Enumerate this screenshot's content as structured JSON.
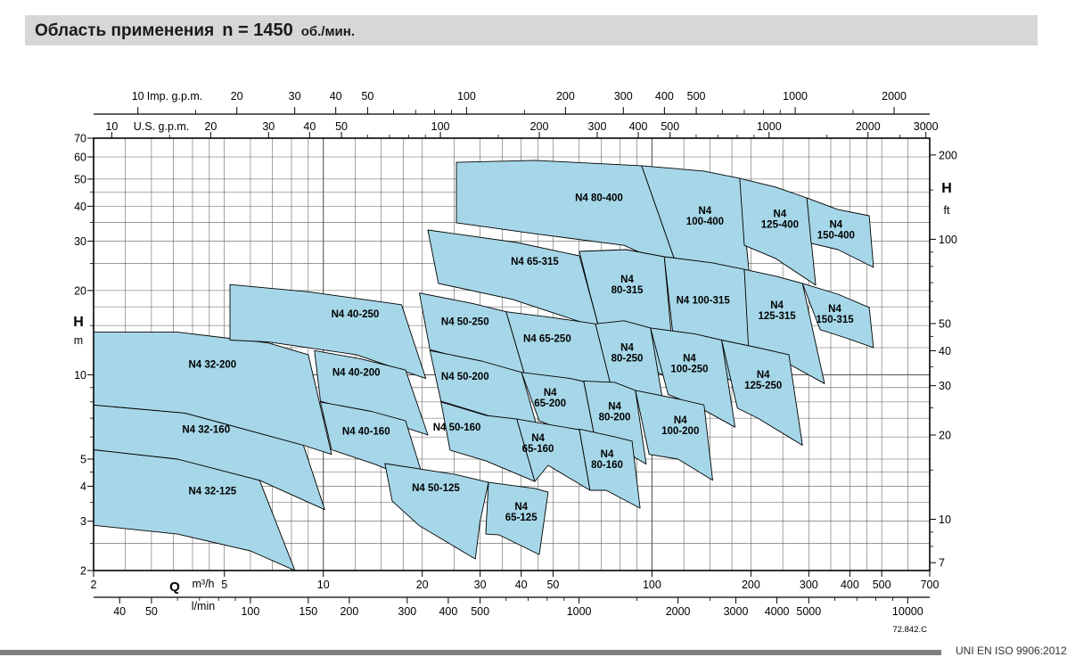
{
  "header": {
    "title_ru": "Область применения",
    "speed": "n = 1450",
    "speed_unit": "об./мин."
  },
  "footer": {
    "drawing_code": "72.842.C",
    "standard": "UNI EN ISO 9906:2012"
  },
  "colors": {
    "header_bg": "#d7d7d7",
    "region_fill": "#a6d7e8",
    "region_stroke": "#000000",
    "grid": "#5a5a5a",
    "frame": "#000000",
    "footer_bar": "#7f7f7f"
  },
  "chart_data": {
    "type": "area",
    "title": "Область применения n = 1450 об./мин.",
    "x_axes": {
      "m3h": {
        "name": "Q",
        "unit": "m³/h",
        "range": [
          2,
          700
        ],
        "ticks": [
          2,
          5,
          10,
          20,
          30,
          40,
          50,
          100,
          200,
          300,
          400,
          500,
          700
        ]
      },
      "lmin": {
        "unit": "l/min",
        "per_m3h": 16.6667,
        "ticks": [
          40,
          50,
          100,
          150,
          200,
          300,
          400,
          500,
          1000,
          2000,
          3000,
          4000,
          5000,
          10000
        ],
        "minor_ticks": [
          60,
          70,
          80,
          90,
          600,
          700,
          800,
          900,
          1500,
          2500,
          6000,
          7000,
          8000,
          9000
        ]
      },
      "imp_gpm": {
        "unit": "Imp. g.p.m.",
        "per_m3h": 3.6662,
        "ticks": [
          10,
          20,
          30,
          40,
          50,
          100,
          200,
          300,
          400,
          500,
          1000,
          2000
        ],
        "minor_ticks": [
          15,
          60,
          70,
          80,
          90,
          150,
          600,
          700,
          800,
          900,
          1500
        ]
      },
      "us_gpm": {
        "unit": "U.S. g.p.m.",
        "per_m3h": 4.4029,
        "ticks": [
          10,
          20,
          30,
          40,
          50,
          100,
          200,
          300,
          400,
          500,
          1000,
          2000,
          3000
        ],
        "minor_ticks": [
          15,
          60,
          70,
          80,
          90,
          150,
          600,
          700,
          800,
          900,
          1500,
          2500
        ]
      }
    },
    "y_axes": {
      "m": {
        "name": "H",
        "unit": "m",
        "range": [
          2,
          70
        ],
        "ticks": [
          2,
          3,
          4,
          5,
          10,
          20,
          30,
          40,
          50,
          60,
          70
        ],
        "minor_ticks": [
          2.5,
          3.5,
          4.5,
          6,
          7,
          8,
          9,
          15,
          25,
          35,
          45
        ]
      },
      "ft": {
        "name": "H",
        "unit": "ft",
        "per_m": 3.2808,
        "ticks": [
          7,
          10,
          20,
          30,
          40,
          50,
          100,
          200
        ],
        "minor_ticks": [
          8,
          9,
          15,
          25,
          35,
          45,
          60,
          70,
          80,
          90,
          150
        ]
      }
    },
    "regions": [
      {
        "label": "N4 32-125",
        "lines": [
          "N4 32-125"
        ],
        "label_at": [
          4.6,
          3.85
        ],
        "points": [
          [
            2,
            5.4
          ],
          [
            3.6,
            5.0
          ],
          [
            6.4,
            4.2
          ],
          [
            8.2,
            2.0
          ],
          [
            6.0,
            2.35
          ],
          [
            3.6,
            2.7
          ],
          [
            2,
            2.9
          ]
        ]
      },
      {
        "label": "N4 32-160",
        "lines": [
          "N4 32-160"
        ],
        "label_at": [
          4.4,
          6.4
        ],
        "points": [
          [
            2,
            7.8
          ],
          [
            3.8,
            7.3
          ],
          [
            8.7,
            5.6
          ],
          [
            10.1,
            3.3
          ],
          [
            6.4,
            4.2
          ],
          [
            3.6,
            5.0
          ],
          [
            2,
            5.4
          ]
        ]
      },
      {
        "label": "N4 32-200",
        "lines": [
          "N4 32-200"
        ],
        "label_at": [
          4.6,
          10.9
        ],
        "points": [
          [
            2,
            14.2
          ],
          [
            3.6,
            14.2
          ],
          [
            6.8,
            13.0
          ],
          [
            9.0,
            11.8
          ],
          [
            10.6,
            5.2
          ],
          [
            8.7,
            5.6
          ],
          [
            3.8,
            7.3
          ],
          [
            2,
            7.8
          ]
        ]
      },
      {
        "label": "N4 40-250",
        "lines": [
          "N4 40-250"
        ],
        "label_at": [
          12.5,
          16.5
        ],
        "points": [
          [
            5.2,
            21.0
          ],
          [
            9.0,
            19.8
          ],
          [
            17.3,
            17.8
          ],
          [
            20.5,
            9.7
          ],
          [
            12.6,
            11.8
          ],
          [
            6.8,
            13.1
          ],
          [
            5.2,
            13.3
          ]
        ]
      },
      {
        "label": "N4 40-200",
        "lines": [
          "N4 40-200"
        ],
        "label_at": [
          12.6,
          10.2
        ],
        "points": [
          [
            9.4,
            12.2
          ],
          [
            13.0,
            11.4
          ],
          [
            17.8,
            10.4
          ],
          [
            20.8,
            6.1
          ],
          [
            12.6,
            7.4
          ],
          [
            9.8,
            8.05
          ]
        ]
      },
      {
        "label": "N4 40-160",
        "lines": [
          "N4 40-160"
        ],
        "label_at": [
          13.5,
          6.3
        ],
        "points": [
          [
            9.8,
            8.0
          ],
          [
            14.0,
            7.4
          ],
          [
            17.8,
            6.85
          ],
          [
            20.4,
            4.07
          ],
          [
            14.3,
            4.8
          ],
          [
            10.6,
            5.4
          ]
        ]
      },
      {
        "label": "N4 50-250",
        "lines": [
          "N4 50-250"
        ],
        "label_at": [
          27,
          15.5
        ],
        "points": [
          [
            19.6,
            19.6
          ],
          [
            28.4,
            18.0
          ],
          [
            36.0,
            16.8
          ],
          [
            41.3,
            9.7
          ],
          [
            30.3,
            11.0
          ],
          [
            21.1,
            12.3
          ]
        ]
      },
      {
        "label": "N4 50-200",
        "lines": [
          "N4 50-200"
        ],
        "label_at": [
          27,
          9.9
        ],
        "points": [
          [
            21.1,
            12.2
          ],
          [
            30.3,
            11.2
          ],
          [
            40.1,
            10.2
          ],
          [
            45.4,
            6.1
          ],
          [
            31.2,
            7.2
          ],
          [
            22.8,
            8.05
          ]
        ]
      },
      {
        "label": "N4 50-160",
        "lines": [
          "N4 50-160"
        ],
        "label_at": [
          25.5,
          6.5
        ],
        "points": [
          [
            22.8,
            8.0
          ],
          [
            31.2,
            7.16
          ],
          [
            38.8,
            6.95
          ],
          [
            44.0,
            4.16
          ],
          [
            31.2,
            4.93
          ],
          [
            24.3,
            5.38
          ]
        ]
      },
      {
        "label": "N4 50-125",
        "lines": [
          "N4 50-125"
        ],
        "label_at": [
          22,
          3.95
        ],
        "points": [
          [
            15.4,
            4.82
          ],
          [
            25.1,
            4.41
          ],
          [
            31.8,
            4.13
          ],
          [
            30.0,
            3.0
          ],
          [
            29.0,
            2.2
          ],
          [
            19.6,
            2.89
          ],
          [
            16.2,
            3.54
          ]
        ]
      },
      {
        "label": "N4 65-315",
        "lines": [
          "N4 65-315"
        ],
        "label_at": [
          44,
          25.5
        ],
        "points": [
          [
            20.8,
            32.9
          ],
          [
            38.8,
            29.7
          ],
          [
            60.1,
            26.6
          ],
          [
            69.0,
            14.7
          ],
          [
            37.6,
            18.6
          ],
          [
            22.4,
            21.2
          ]
        ]
      },
      {
        "label": "N4 65-250",
        "lines": [
          "N4 65-250"
        ],
        "label_at": [
          48,
          13.5
        ],
        "points": [
          [
            36.0,
            16.8
          ],
          [
            49.9,
            16.0
          ],
          [
            67.3,
            15.2
          ],
          [
            74.9,
            9.2
          ],
          [
            53.1,
            9.4
          ],
          [
            41.3,
            9.7
          ]
        ]
      },
      {
        "label": "N4 65-200",
        "lines": [
          "N4",
          "65-200"
        ],
        "label_at": [
          49,
          8.3
        ],
        "points": [
          [
            40.1,
            10.2
          ],
          [
            56.5,
            9.7
          ],
          [
            62.0,
            9.46
          ],
          [
            67.3,
            5.79
          ],
          [
            49.9,
            6.56
          ],
          [
            45.4,
            6.85
          ]
        ]
      },
      {
        "label": "N4 65-160",
        "lines": [
          "N4",
          "65-160"
        ],
        "label_at": [
          45,
          5.7
        ],
        "points": [
          [
            38.8,
            6.95
          ],
          [
            50.0,
            6.6
          ],
          [
            60.1,
            6.37
          ],
          [
            64.8,
            3.87
          ],
          [
            48.3,
            4.75
          ],
          [
            44.0,
            4.16
          ]
        ]
      },
      {
        "label": "N4 65-125",
        "lines": [
          "N4",
          "65-125"
        ],
        "label_at": [
          40,
          3.25
        ],
        "points": [
          [
            31.8,
            4.13
          ],
          [
            44.0,
            3.93
          ],
          [
            48.3,
            3.81
          ],
          [
            45.4,
            2.28
          ],
          [
            34.3,
            2.68
          ],
          [
            31.2,
            2.7
          ]
        ]
      },
      {
        "label": "N4 80-400",
        "lines": [
          "N4 80-400"
        ],
        "label_at": [
          69,
          43
        ],
        "points": [
          [
            25.4,
            57.4
          ],
          [
            44.0,
            58.3
          ],
          [
            93.0,
            55.8
          ],
          [
            120,
            23.8
          ],
          [
            82.2,
            29.0
          ],
          [
            44.0,
            31.9
          ],
          [
            25.4,
            34.9
          ]
        ]
      },
      {
        "label": "N4 80-315",
        "lines": [
          "N4",
          "80-315"
        ],
        "label_at": [
          84,
          21
        ],
        "points": [
          [
            60.1,
            27.6
          ],
          [
            83.5,
            28.0
          ],
          [
            109,
            26.4
          ],
          [
            118,
            9.4
          ],
          [
            82.2,
            11.9
          ],
          [
            69.0,
            14.7
          ],
          [
            64.8,
            19.4
          ]
        ]
      },
      {
        "label": "N4 80-250",
        "lines": [
          "N4",
          "80-250"
        ],
        "label_at": [
          84,
          12
        ],
        "points": [
          [
            67.3,
            15.2
          ],
          [
            82.2,
            15.6
          ],
          [
            99.0,
            14.7
          ],
          [
            109,
            7.5
          ],
          [
            82.2,
            8.7
          ],
          [
            74.9,
            9.2
          ]
        ]
      },
      {
        "label": "N4 80-200",
        "lines": [
          "N4",
          "80-200"
        ],
        "label_at": [
          77,
          7.4
        ],
        "points": [
          [
            62.0,
            9.5
          ],
          [
            77.0,
            9.4
          ],
          [
            89.0,
            8.8
          ],
          [
            96.0,
            4.8
          ],
          [
            77.0,
            5.6
          ],
          [
            67.3,
            5.8
          ]
        ]
      },
      {
        "label": "N4 80-160",
        "lines": [
          "N4",
          "80-160"
        ],
        "label_at": [
          73,
          5.0
        ],
        "points": [
          [
            60.1,
            6.4
          ],
          [
            77.0,
            6.0
          ],
          [
            87.0,
            5.8
          ],
          [
            92.0,
            3.34
          ],
          [
            72.6,
            3.87
          ],
          [
            64.8,
            3.87
          ]
        ]
      },
      {
        "label": "N4 100-400",
        "lines": [
          "N4",
          "100-400"
        ],
        "label_at": [
          145,
          37
        ],
        "points": [
          [
            93.0,
            55.8
          ],
          [
            144,
            53.4
          ],
          [
            185,
            50.3
          ],
          [
            203,
            16.8
          ],
          [
            153,
            20.9
          ],
          [
            120,
            23.8
          ]
        ]
      },
      {
        "label": "N4 100-315",
        "lines": [
          "N4 100-315"
        ],
        "label_at": [
          143,
          18.5
        ],
        "points": [
          [
            109,
            26.4
          ],
          [
            153,
            25.1
          ],
          [
            191,
            23.8
          ],
          [
            203,
            8.7
          ],
          [
            153,
            10.3
          ],
          [
            118,
            11.5
          ]
        ]
      },
      {
        "label": "N4 100-250",
        "lines": [
          "N4",
          "100-250"
        ],
        "label_at": [
          130,
          11
        ],
        "points": [
          [
            99.0,
            14.7
          ],
          [
            135,
            14.0
          ],
          [
            163,
            13.3
          ],
          [
            179,
            6.5
          ],
          [
            135,
            7.8
          ],
          [
            112,
            8.5
          ]
        ]
      },
      {
        "label": "N4 100-200",
        "lines": [
          "N4",
          "100-200"
        ],
        "label_at": [
          122,
          6.6
        ],
        "points": [
          [
            89.0,
            8.8
          ],
          [
            120,
            8.2
          ],
          [
            144,
            7.8
          ],
          [
            153,
            4.2
          ],
          [
            120,
            5.0
          ],
          [
            98.0,
            5.2
          ]
        ]
      },
      {
        "label": "N4 125-400",
        "lines": [
          "N4",
          "125-400"
        ],
        "label_at": [
          245,
          36
        ],
        "points": [
          [
            185,
            50.3
          ],
          [
            238,
            46.8
          ],
          [
            296,
            42.8
          ],
          [
            315,
            20.9
          ],
          [
            238,
            26.0
          ],
          [
            191,
            29.0
          ]
        ]
      },
      {
        "label": "N4 125-315",
        "lines": [
          "N4",
          "125-315"
        ],
        "label_at": [
          240,
          17
        ],
        "points": [
          [
            191,
            23.8
          ],
          [
            238,
            22.5
          ],
          [
            287,
            21.2
          ],
          [
            335,
            9.3
          ],
          [
            238,
            11.6
          ],
          [
            197,
            12.0
          ]
        ]
      },
      {
        "label": "N4 125-250",
        "lines": [
          "N4",
          "125-250"
        ],
        "label_at": [
          218,
          9.6
        ],
        "points": [
          [
            163,
            13.3
          ],
          [
            210,
            12.5
          ],
          [
            261,
            11.8
          ],
          [
            287,
            5.6
          ],
          [
            210,
            7.0
          ],
          [
            182,
            7.6
          ]
        ]
      },
      {
        "label": "N4 150-400",
        "lines": [
          "N4",
          "150-400"
        ],
        "label_at": [
          363,
          33
        ],
        "points": [
          [
            296,
            42.8
          ],
          [
            368,
            38.9
          ],
          [
            458,
            37.0
          ],
          [
            472,
            24.2
          ],
          [
            368,
            28.0
          ],
          [
            305,
            29.5
          ]
        ]
      },
      {
        "label": "N4 150-315",
        "lines": [
          "N4",
          "150-315"
        ],
        "label_at": [
          360,
          16.5
        ],
        "points": [
          [
            287,
            21.2
          ],
          [
            368,
            19.4
          ],
          [
            458,
            17.4
          ],
          [
            472,
            12.5
          ],
          [
            392,
            13.5
          ],
          [
            325,
            14.5
          ]
        ]
      }
    ]
  }
}
